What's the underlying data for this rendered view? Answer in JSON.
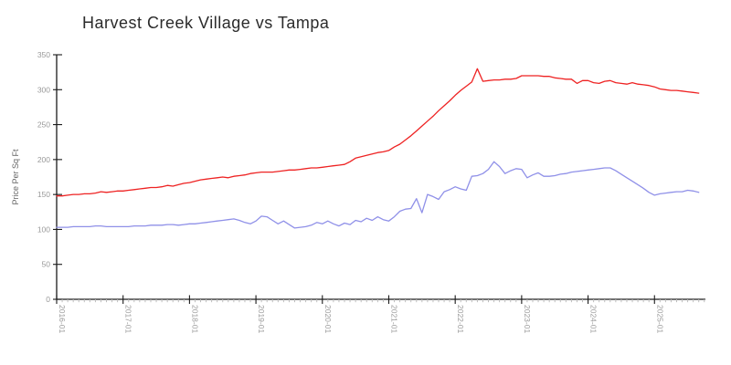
{
  "title": "Harvest Creek Village vs Tampa",
  "colors": {
    "axis": "#1a1a1a",
    "tick_label": "#999999",
    "minor_tick": "#bbbbbb",
    "axis_label": "#666666",
    "title": "#2b2b2b",
    "series_red": "#ee2222",
    "series_blue": "#8f90e8"
  },
  "chart_data": {
    "type": "line",
    "title": "Harvest Creek Village vs Tampa",
    "xlabel": "",
    "ylabel": "Price Per Sq Ft",
    "ylim": [
      0,
      350
    ],
    "y_ticks": [
      0,
      50,
      100,
      150,
      200,
      250,
      300,
      350
    ],
    "x_tick_labels": [
      "2016-01",
      "2017-01",
      "2018-01",
      "2019-01",
      "2020-01",
      "2021-01",
      "2022-01",
      "2023-01",
      "2024-01",
      "2025-01"
    ],
    "x_start": "2016-01",
    "x_end": "2025-09",
    "x_frequency": "monthly",
    "grid": false,
    "legend_position": "none",
    "series": [
      {
        "name": "red",
        "color": "#ee2222",
        "values": [
          148,
          148,
          149,
          150,
          150,
          151,
          151,
          152,
          154,
          153,
          154,
          155,
          155,
          156,
          157,
          158,
          159,
          160,
          160,
          161,
          163,
          162,
          164,
          166,
          167,
          169,
          171,
          172,
          173,
          174,
          175,
          174,
          176,
          177,
          178,
          180,
          181,
          182,
          182,
          182,
          183,
          184,
          185,
          185,
          186,
          187,
          188,
          188,
          189,
          190,
          191,
          192,
          193,
          197,
          202,
          204,
          206,
          208,
          210,
          211,
          213,
          218,
          222,
          228,
          234,
          241,
          248,
          255,
          262,
          270,
          277,
          284,
          292,
          299,
          305,
          311,
          330,
          312,
          313,
          314,
          314,
          315,
          315,
          316,
          320,
          320,
          320,
          320,
          319,
          319,
          317,
          316,
          315,
          315,
          309,
          313,
          313,
          310,
          309,
          312,
          313,
          310,
          309,
          308,
          310,
          308,
          307,
          306,
          304,
          301,
          300,
          299,
          299,
          298,
          297,
          296,
          295
        ]
      },
      {
        "name": "blue",
        "color": "#8f90e8",
        "values": [
          103,
          103,
          103,
          104,
          104,
          104,
          104,
          105,
          105,
          104,
          104,
          104,
          104,
          104,
          105,
          105,
          105,
          106,
          106,
          106,
          107,
          107,
          106,
          107,
          108,
          108,
          109,
          110,
          111,
          112,
          113,
          114,
          115,
          113,
          110,
          108,
          112,
          119,
          118,
          113,
          108,
          112,
          107,
          102,
          103,
          104,
          106,
          110,
          108,
          112,
          108,
          105,
          109,
          107,
          113,
          111,
          116,
          113,
          118,
          114,
          112,
          118,
          126,
          129,
          130,
          144,
          124,
          150,
          147,
          143,
          154,
          157,
          161,
          158,
          156,
          176,
          177,
          180,
          186,
          197,
          190,
          180,
          184,
          187,
          186,
          174,
          178,
          181,
          176,
          176,
          177,
          179,
          180,
          182,
          183,
          184,
          185,
          186,
          187,
          188,
          188,
          184,
          179,
          174,
          169,
          164,
          159,
          153,
          149,
          151,
          152,
          153,
          154,
          154,
          156,
          155,
          153
        ]
      }
    ]
  }
}
